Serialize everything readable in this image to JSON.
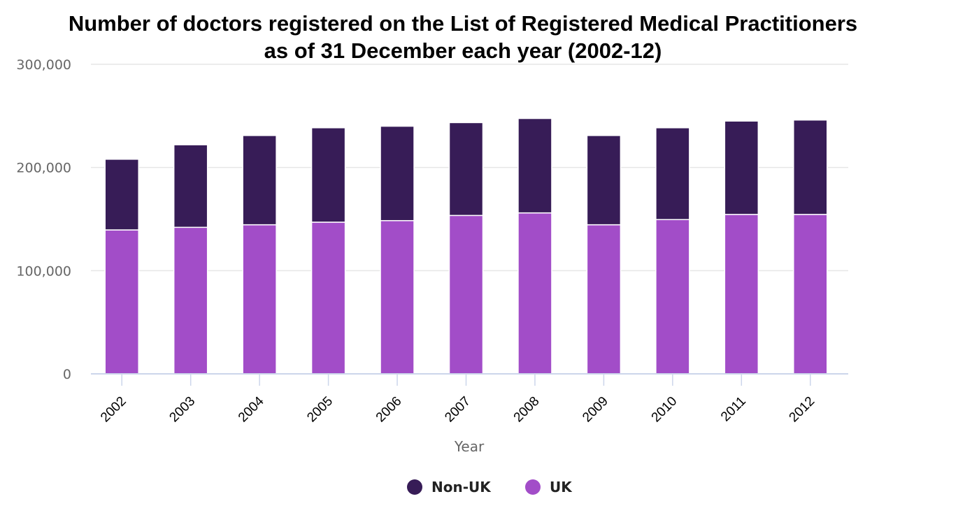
{
  "colors": {
    "non_uk": "#371c57",
    "uk": "#a24dc8",
    "grid": "#e6e6e6",
    "axis": "#ccd6eb"
  },
  "chart_data": {
    "type": "bar",
    "stacked": true,
    "title_lines": [
      "Number of doctors registered on the List of Registered Medical Practitioners",
      "as of 31 December each year (2002-12)"
    ],
    "xlabel": "Year",
    "ylabel": "",
    "ylim": [
      0,
      300000
    ],
    "yticks": [
      0,
      100000,
      200000,
      300000
    ],
    "ytick_labels": [
      "0",
      "100,000",
      "200,000",
      "300,000"
    ],
    "grid": true,
    "legend_position": "bottom-center",
    "categories": [
      "2002",
      "2003",
      "2004",
      "2005",
      "2006",
      "2007",
      "2008",
      "2009",
      "2010",
      "2011",
      "2012"
    ],
    "series": [
      {
        "name": "UK",
        "color": "#a24dc8",
        "values": [
          139500,
          142000,
          144500,
          147000,
          148500,
          153500,
          156000,
          144500,
          149500,
          154500,
          154500
        ]
      },
      {
        "name": "Non-UK",
        "color": "#371c57",
        "values": [
          68500,
          80000,
          86500,
          91500,
          91500,
          90000,
          91500,
          86500,
          89000,
          90500,
          91500
        ]
      }
    ],
    "legend": [
      {
        "label": "Non-UK",
        "color": "#371c57"
      },
      {
        "label": "UK",
        "color": "#a24dc8"
      }
    ]
  }
}
